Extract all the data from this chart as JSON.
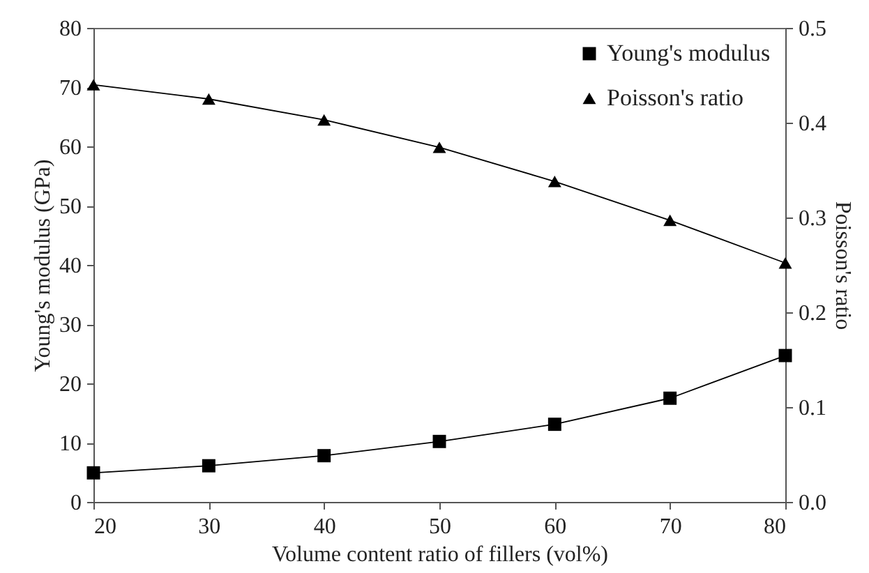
{
  "chart_data": {
    "type": "line",
    "xlabel": "Volume content ratio of fillers (vol%)",
    "ylabel": "Young's modulus (GPa)",
    "y2label": "Poisson's ratio",
    "x": [
      20,
      30,
      40,
      50,
      60,
      70,
      80
    ],
    "xlim": [
      20,
      80
    ],
    "xticks": [
      20,
      30,
      40,
      50,
      60,
      70,
      80
    ],
    "ylim": [
      0,
      80
    ],
    "yticks": [
      0,
      10,
      20,
      30,
      40,
      50,
      60,
      70,
      80
    ],
    "y2lim": [
      0,
      0.5
    ],
    "y2ticks": [
      {
        "value": 0,
        "label": "0.0"
      },
      0.1,
      0.2,
      0.3,
      0.4,
      0.5
    ],
    "grid": false,
    "legend": "top right",
    "series": [
      {
        "name": "Young's modulus",
        "color": "#000000",
        "marker": "square",
        "values": [
          4.9,
          6.1,
          7.8,
          10.2,
          13.1,
          17.5,
          24.7
        ]
      },
      {
        "name": "Poisson's ratio",
        "color": "#000000",
        "marker": "triangle",
        "axis": "y2",
        "values": [
          0.44,
          0.425,
          0.403,
          0.374,
          0.338,
          0.297,
          0.252
        ]
      }
    ]
  }
}
